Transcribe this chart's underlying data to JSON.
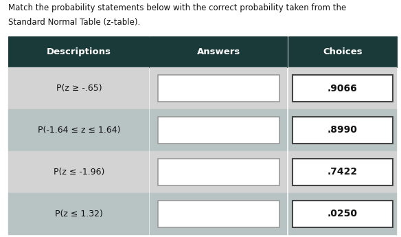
{
  "title_line1": "Match the probability statements below with the correct probability taken from the",
  "title_line2": "Standard Normal Table (z-table).",
  "header_bg": "#1a3a3a",
  "header_text_color": "#ffffff",
  "col_headers": [
    "Descriptions",
    "Answers",
    "Choices"
  ],
  "descriptions": [
    "P(z ≥ -.65)",
    "P(-1.64 ≤ z ≤ 1.64)",
    "P(z ≤ -1.96)",
    "P(z ≤ 1.32)"
  ],
  "choices": [
    ".9066",
    ".8990",
    ".7422",
    ".0250"
  ],
  "row_bg_light": "#d3d3d3",
  "row_bg_medium": "#b8c4c4",
  "answer_box_bg": "#ffffff",
  "answer_box_border": "#999999",
  "choice_box_bg": "#ffffff",
  "choice_box_border": "#444444",
  "page_bg": "#ffffff",
  "title_fontsize": 8.5,
  "header_fontsize": 9.5,
  "cell_fontsize": 9.0,
  "choice_fontsize": 10.0
}
